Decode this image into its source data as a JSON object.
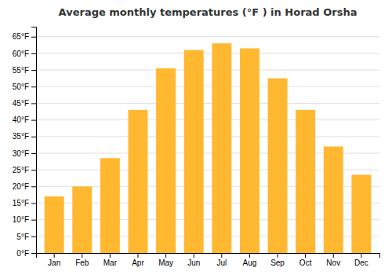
{
  "chart_data": {
    "type": "bar",
    "title": "Average monthly temperatures (°F ) in Horad Orsha",
    "categories": [
      "Jan",
      "Feb",
      "Mar",
      "Apr",
      "May",
      "Jun",
      "Jul",
      "Aug",
      "Sep",
      "Oct",
      "Nov",
      "Dec"
    ],
    "values": [
      17,
      20,
      28.5,
      43,
      55.5,
      61,
      63,
      61.5,
      52.5,
      43,
      32,
      23.5
    ],
    "color": "#FFB830",
    "ylim": [
      0,
      68
    ],
    "yticks": [
      {
        "value": 0,
        "label": "0°F"
      },
      {
        "value": 5,
        "label": "5°F"
      },
      {
        "value": 10,
        "label": "10°F"
      },
      {
        "value": 15,
        "label": "15°F"
      },
      {
        "value": 20,
        "label": "20°F"
      },
      {
        "value": 25,
        "label": "25°F"
      },
      {
        "value": 30,
        "label": "30°F"
      },
      {
        "value": 35,
        "label": "35°F"
      },
      {
        "value": 40,
        "label": "40°F"
      },
      {
        "value": 45,
        "label": "45°F"
      },
      {
        "value": 50,
        "label": "50°F"
      },
      {
        "value": 55,
        "label": "55°F"
      },
      {
        "value": 60,
        "label": "60°F"
      },
      {
        "value": 65,
        "label": "65°F"
      }
    ],
    "grid": true
  }
}
